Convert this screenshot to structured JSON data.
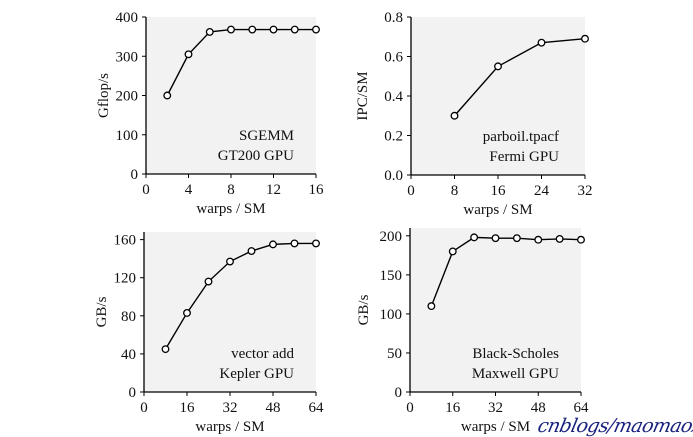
{
  "chart_data": [
    {
      "type": "line",
      "xlabel": "warps / SM",
      "ylabel": "Gflop/s",
      "annotation": [
        "SGEMM",
        "GT200 GPU"
      ],
      "xlim": [
        0,
        16
      ],
      "ylim": [
        0,
        400
      ],
      "xticks": [
        0,
        4,
        8,
        12,
        16
      ],
      "yticks": [
        0,
        100,
        200,
        300,
        400
      ],
      "x": [
        2,
        4,
        6,
        8,
        10,
        12,
        14,
        16
      ],
      "values": [
        200,
        305,
        362,
        368,
        368,
        368,
        368,
        368
      ],
      "grid": false,
      "background": "#f2f2f2"
    },
    {
      "type": "line",
      "xlabel": "warps / SM",
      "ylabel": "IPC/SM",
      "annotation": [
        "parboil.tpacf",
        "Fermi GPU"
      ],
      "xlim": [
        0,
        32
      ],
      "ylim": [
        0,
        0.8
      ],
      "xticks": [
        0,
        8,
        16,
        24,
        32
      ],
      "yticks": [
        "0.0",
        "0.2",
        "0.4",
        "0.6",
        "0.8"
      ],
      "x": [
        8,
        16,
        24,
        32
      ],
      "values": [
        0.3,
        0.55,
        0.67,
        0.69
      ],
      "grid": false,
      "background": "#f2f2f2"
    },
    {
      "type": "line",
      "xlabel": "warps / SM",
      "ylabel": "GB/s",
      "annotation": [
        "vector add",
        "Kepler GPU"
      ],
      "xlim": [
        0,
        64
      ],
      "ylim": [
        0,
        168
      ],
      "xticks": [
        0,
        16,
        32,
        48,
        64
      ],
      "yticks": [
        0,
        40,
        80,
        120,
        160
      ],
      "x": [
        8,
        16,
        24,
        32,
        40,
        48,
        56,
        64
      ],
      "values": [
        45,
        83,
        116,
        137,
        148,
        155,
        156,
        156
      ],
      "grid": false,
      "background": "#f2f2f2"
    },
    {
      "type": "line",
      "xlabel": "warps / SM",
      "ylabel": "GB/s",
      "annotation": [
        "Black-Scholes",
        "Maxwell GPU"
      ],
      "xlim": [
        0,
        64
      ],
      "ylim": [
        0,
        210
      ],
      "xticks": [
        0,
        16,
        32,
        48,
        64
      ],
      "yticks": [
        0,
        50,
        100,
        150,
        200
      ],
      "x": [
        8,
        16,
        24,
        32,
        40,
        48,
        56,
        64
      ],
      "values": [
        110,
        180,
        198,
        197,
        197,
        195,
        196,
        195
      ],
      "grid": false,
      "background": "#f2f2f2"
    }
  ],
  "watermark": "cnblogs/maomaozi"
}
